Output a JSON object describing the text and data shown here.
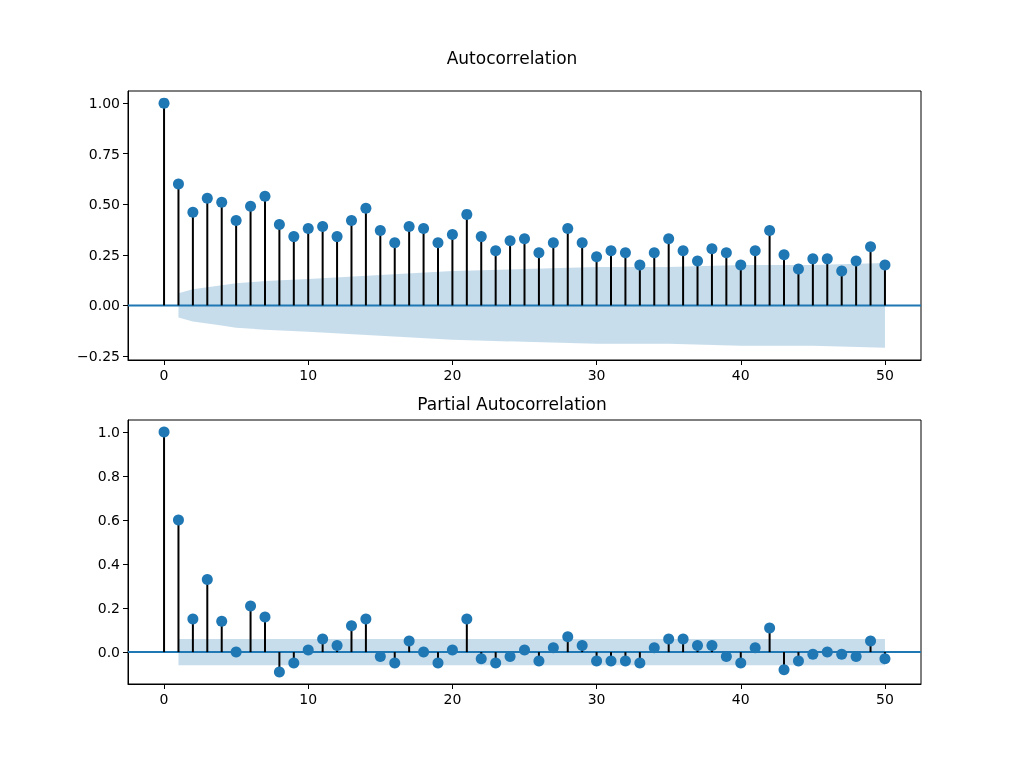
{
  "chart_data": [
    {
      "type": "lollipop",
      "title": "Autocorrelation",
      "grid": false,
      "xlim": [
        -2.5,
        52.5
      ],
      "xticks": [
        0,
        10,
        20,
        30,
        40,
        50
      ],
      "ylim": [
        -0.27,
        1.06
      ],
      "yticks": [
        {
          "value": -0.25,
          "label": "−0.25"
        },
        {
          "value": 0,
          "label": "0.00"
        },
        {
          "value": 0.25,
          "label": "0.25"
        },
        {
          "value": 0.5,
          "label": "0.50"
        },
        {
          "value": 0.75,
          "label": "0.75"
        },
        {
          "value": 1,
          "label": "1.00"
        }
      ],
      "series": [
        {
          "type": "line",
          "marker": "none",
          "color": "#1f77b4",
          "x": [
            -2.5,
            1,
            2,
            3,
            4,
            5,
            7,
            10,
            15,
            20,
            25,
            30,
            35,
            40,
            45,
            50,
            52.5
          ],
          "values": [
            0,
            0,
            0,
            0,
            0,
            0,
            0,
            0,
            0,
            0,
            0,
            0,
            0,
            0,
            0,
            0,
            0
          ],
          "lower": [
            null,
            -0.06,
            -0.08,
            -0.09,
            -0.1,
            -0.11,
            -0.12,
            -0.13,
            -0.15,
            -0.17,
            -0.18,
            -0.19,
            -0.19,
            -0.2,
            -0.2,
            -0.21,
            null
          ],
          "upper": [
            null,
            0.06,
            0.08,
            0.09,
            0.1,
            0.11,
            0.12,
            0.13,
            0.15,
            0.17,
            0.18,
            0.19,
            0.19,
            0.2,
            0.2,
            0.21,
            null
          ]
        },
        {
          "color": "#1f77b4",
          "x": [
            0,
            1,
            2,
            3,
            4,
            5,
            6,
            7,
            8,
            9,
            10,
            11,
            12,
            13,
            14,
            15,
            16,
            17,
            18,
            19,
            20,
            21,
            22,
            23,
            24,
            25,
            26,
            27,
            28,
            29,
            30,
            31,
            32,
            33,
            34,
            35,
            36,
            37,
            38,
            39,
            40,
            41,
            42,
            43,
            44,
            45,
            46,
            47,
            48,
            49,
            50
          ],
          "marker": "circle",
          "values": [
            1.0,
            0.6,
            0.46,
            0.53,
            0.51,
            0.42,
            0.49,
            0.54,
            0.4,
            0.34,
            0.38,
            0.39,
            0.34,
            0.42,
            0.48,
            0.37,
            0.31,
            0.39,
            0.38,
            0.31,
            0.35,
            0.45,
            0.34,
            0.27,
            0.32,
            0.33,
            0.26,
            0.31,
            0.38,
            0.31,
            0.24,
            0.27,
            0.26,
            0.2,
            0.26,
            0.33,
            0.27,
            0.22,
            0.28,
            0.26,
            0.2,
            0.27,
            0.37,
            0.25,
            0.18,
            0.23,
            0.23,
            0.17,
            0.22,
            0.29,
            0.2
          ]
        }
      ]
    },
    {
      "type": "lollipop",
      "title": "Partial Autocorrelation",
      "grid": false,
      "xlim": [
        -2.5,
        52.5
      ],
      "xticks": [
        0,
        10,
        20,
        30,
        40,
        50
      ],
      "ylim": [
        -0.145,
        1.055
      ],
      "yticks": [
        {
          "value": 0,
          "label": "0.0"
        },
        {
          "value": 0.2,
          "label": "0.2"
        },
        {
          "value": 0.4,
          "label": "0.4"
        },
        {
          "value": 0.6,
          "label": "0.6"
        },
        {
          "value": 0.8,
          "label": "0.8"
        },
        {
          "value": 1,
          "label": "1.0"
        }
      ],
      "series": [
        {
          "type": "line",
          "marker": "none",
          "color": "#1f77b4",
          "x": [
            -2.5,
            1,
            50,
            52.5
          ],
          "values": [
            0,
            0,
            0,
            0
          ],
          "lower": [
            null,
            -0.06,
            -0.06,
            null
          ],
          "upper": [
            null,
            0.06,
            0.06,
            null
          ]
        },
        {
          "color": "#1f77b4",
          "x": [
            0,
            1,
            2,
            3,
            4,
            5,
            6,
            7,
            8,
            9,
            10,
            11,
            12,
            13,
            14,
            15,
            16,
            17,
            18,
            19,
            20,
            21,
            22,
            23,
            24,
            25,
            26,
            27,
            28,
            29,
            30,
            31,
            32,
            33,
            34,
            35,
            36,
            37,
            38,
            39,
            40,
            41,
            42,
            43,
            44,
            45,
            46,
            47,
            48,
            49,
            50
          ],
          "marker": "circle",
          "values": [
            1.0,
            0.6,
            0.15,
            0.33,
            0.14,
            0.0,
            0.21,
            0.16,
            -0.09,
            -0.05,
            0.01,
            0.06,
            0.03,
            0.12,
            0.15,
            -0.02,
            -0.05,
            0.05,
            0.0,
            -0.05,
            0.01,
            0.15,
            -0.03,
            -0.05,
            -0.02,
            0.01,
            -0.04,
            0.02,
            0.07,
            0.03,
            -0.04,
            -0.04,
            -0.04,
            -0.05,
            0.02,
            0.06,
            0.06,
            0.03,
            0.03,
            -0.02,
            -0.05,
            0.02,
            0.11,
            -0.08,
            -0.04,
            -0.01,
            0.0,
            -0.01,
            -0.02,
            0.05,
            -0.03
          ]
        }
      ]
    }
  ]
}
